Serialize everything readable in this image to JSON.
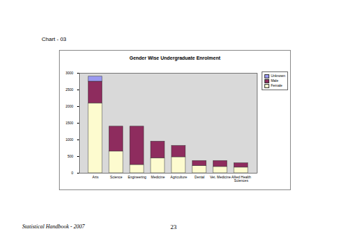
{
  "page": {
    "label": "Chart - 03",
    "footer": "Statistical Handbook - 2007",
    "page_number": 23
  },
  "chart_data": {
    "type": "bar",
    "stacked": true,
    "title": "Gender Wise Undergraduate Enrolment",
    "categories": [
      "Arts",
      "Science",
      "Engineering",
      "Medicine",
      "Agriculture",
      "Dental",
      "Vet. Medicine",
      "Allied Health Sciences"
    ],
    "series": [
      {
        "name": "Female",
        "color": "#fdfbcf",
        "values": [
          2100,
          650,
          250,
          450,
          480,
          220,
          190,
          170
        ]
      },
      {
        "name": "Male",
        "color": "#8e2c5e",
        "values": [
          650,
          750,
          1150,
          500,
          340,
          150,
          180,
          130
        ]
      },
      {
        "name": "Unknown",
        "color": "#9a99f0",
        "values": [
          150,
          0,
          0,
          0,
          0,
          0,
          0,
          0
        ]
      }
    ],
    "ylim": [
      0,
      3000
    ],
    "yticks": [
      0,
      500,
      1000,
      1500,
      2000,
      2500,
      3000
    ],
    "grid": false,
    "legend": "top-right"
  }
}
